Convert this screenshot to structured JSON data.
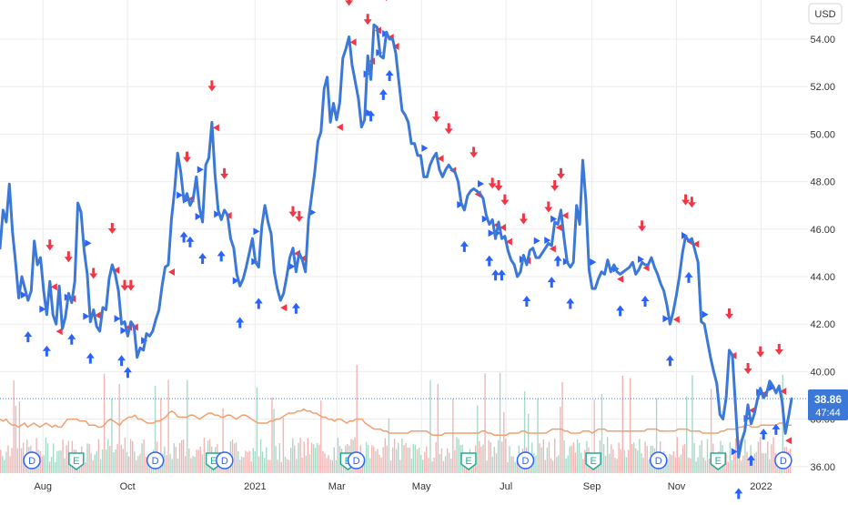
{
  "chart_data": {
    "type": "line",
    "currency": "USD",
    "ylim": [
      36,
      55
    ],
    "y_ticks": [
      "36.00",
      "38.00",
      "40.00",
      "42.00",
      "44.00",
      "46.00",
      "48.00",
      "50.00",
      "52.00",
      "54.00"
    ],
    "x_ticks": [
      {
        "label": "Aug",
        "x": "2020-08"
      },
      {
        "label": "Oct",
        "x": "2020-10"
      },
      {
        "label": "2021",
        "x": "2021-01"
      },
      {
        "label": "Mar",
        "x": "2021-03"
      },
      {
        "label": "May",
        "x": "2021-05"
      },
      {
        "label": "Jul",
        "x": "2021-07"
      },
      {
        "label": "Sep",
        "x": "2021-09"
      },
      {
        "label": "Nov",
        "x": "2021-11"
      },
      {
        "label": "2022",
        "x": "2022-01"
      }
    ],
    "grid": true,
    "last_price": "38.86",
    "countdown": "47:44",
    "series": [
      {
        "values": [
          45.2,
          46.8,
          46.3,
          47.9,
          45.9,
          44.6,
          43.1,
          44.0,
          43.5,
          43.0,
          43.4,
          45.5,
          44.5,
          44.8,
          43.4,
          42.4,
          43.8,
          42.4,
          42.0,
          43.6,
          41.8,
          42.3,
          43.3,
          42.9,
          43.8,
          47.1,
          46.7,
          45.1,
          44.1,
          42.1,
          42.6,
          41.9,
          41.7,
          42.7,
          42.6,
          43.9,
          44.5,
          44.1,
          43.4,
          42.0,
          42.1,
          41.5,
          42.1,
          41.9,
          40.6,
          41.0,
          40.9,
          41.6,
          41.5,
          41.7,
          42.2,
          42.6,
          43.6,
          44.4,
          44.5,
          46.4,
          47.6,
          49.2,
          48.4,
          47.2,
          47.5,
          47.0,
          47.3,
          48.2,
          46.9,
          46.3,
          48.7,
          49.0,
          50.5,
          48.3,
          46.8,
          46.4,
          46.8,
          46.6,
          45.6,
          45.2,
          44.1,
          43.6,
          43.9,
          44.4,
          45.0,
          45.6,
          44.6,
          44.4,
          46.1,
          47.0,
          46.3,
          45.8,
          44.2,
          43.5,
          43.0,
          43.3,
          44.0,
          44.8,
          45.2,
          44.2,
          45.0,
          44.7,
          44.2,
          46.4,
          47.4,
          48.4,
          49.7,
          50.1,
          51.9,
          52.4,
          50.5,
          51.3,
          50.6,
          51.3,
          53.2,
          53.6,
          54.1,
          52.9,
          52.2,
          51.5,
          50.3,
          50.6,
          53.3,
          52.3,
          54.6,
          54.5,
          53.3,
          53.2,
          54.3,
          54.0,
          54.0,
          53.4,
          52.2,
          51.0,
          50.8,
          50.5,
          49.6,
          49.6,
          49.1,
          49.1,
          48.2,
          48.2,
          48.7,
          49.0,
          49.2,
          48.5,
          48.2,
          48.5,
          48.7,
          48.5,
          48.4,
          48.0,
          47.1,
          46.8,
          47.4,
          47.6,
          47.7,
          47.6,
          47.5,
          47.3,
          46.6,
          46.2,
          46.4,
          45.6,
          46.3,
          45.6,
          45.7,
          45.1,
          44.7,
          44.5,
          44.0,
          44.2,
          44.9,
          44.5,
          45.1,
          45.2,
          44.8,
          44.8,
          45.0,
          45.2,
          45.4,
          45.3,
          46.3,
          46.2,
          46.8,
          45.6,
          44.6,
          44.4,
          44.6,
          47.0,
          46.2,
          48.9,
          47.2,
          44.3,
          43.5,
          43.5,
          43.9,
          44.2,
          44.1,
          44.7,
          44.2,
          44.5,
          44.2,
          44.1,
          44.2,
          44.3,
          44.4,
          44.6,
          44.1,
          44.3,
          44.6,
          44.5,
          44.5,
          44.8,
          44.4,
          44.1,
          43.7,
          43.4,
          42.8,
          42.0,
          42.5,
          43.2,
          44.0,
          45.0,
          45.7,
          45.5,
          45.6,
          45.1,
          44.6,
          42.1,
          42.0,
          41.3,
          40.6,
          40.0,
          39.5,
          38.2,
          38.0,
          38.9,
          40.9,
          40.7,
          38.6,
          36.4,
          37.1,
          37.5,
          38.6,
          37.8,
          38.2,
          38.8,
          39.3,
          38.9,
          39.1,
          39.6,
          39.4,
          39.1,
          39.4,
          38.7,
          37.4,
          38.1,
          38.86
        ]
      },
      {
        "name": "volume-average",
        "values": [
          27,
          26,
          27,
          25,
          24,
          24,
          23,
          24,
          25,
          23,
          24,
          25,
          24,
          23,
          24,
          25,
          24,
          23,
          24,
          23,
          23,
          25,
          27,
          27,
          27,
          27,
          26,
          26,
          26,
          24,
          24,
          24,
          23,
          23,
          24,
          26,
          27,
          26,
          25,
          24,
          26,
          27,
          28,
          28,
          29,
          27,
          27,
          26,
          25,
          25,
          25,
          26,
          26,
          27,
          28,
          30,
          31,
          30,
          28,
          28,
          28,
          28,
          29,
          29,
          28,
          27,
          28,
          29,
          30,
          30,
          29,
          29,
          28,
          28,
          29,
          29,
          28,
          27,
          28,
          29,
          29,
          28,
          27,
          26,
          25,
          25,
          25,
          25,
          26,
          26,
          27,
          27,
          28,
          29,
          30,
          30,
          30,
          31,
          31,
          32,
          31,
          31,
          30,
          30,
          29,
          28,
          28,
          27,
          27,
          26,
          27,
          27,
          26,
          25,
          26,
          26,
          27,
          27,
          27,
          25,
          24,
          23,
          22,
          22,
          22,
          21,
          21,
          20,
          20,
          20,
          20,
          20,
          20,
          20,
          21,
          21,
          21,
          21,
          21,
          21,
          20,
          19,
          19,
          19,
          19,
          20,
          20,
          20,
          20,
          20,
          20,
          20,
          20,
          20,
          20,
          20,
          20,
          21,
          21,
          20,
          20,
          19,
          19,
          19,
          19,
          19,
          20,
          20,
          20,
          20,
          21,
          21,
          20,
          20,
          20,
          20,
          20,
          20,
          20,
          21,
          22,
          22,
          22,
          22,
          21,
          21,
          20,
          20,
          20,
          20,
          21,
          21,
          21,
          20,
          21,
          22,
          22,
          22,
          21,
          21,
          21,
          21,
          21,
          21,
          21,
          21,
          21,
          21,
          21,
          21,
          21,
          22,
          22,
          22,
          22,
          21,
          21,
          21,
          21,
          21,
          21,
          22,
          22,
          22,
          22,
          21,
          21,
          21,
          21,
          20,
          20,
          20,
          20,
          20,
          20,
          21,
          21,
          22,
          22,
          22,
          22,
          23,
          23,
          24,
          24,
          23,
          23,
          23,
          24,
          24,
          24,
          24,
          24,
          24,
          25,
          25,
          24,
          24,
          24
        ]
      }
    ],
    "event_markers": [
      {
        "label": "D",
        "x": "2020-07-24"
      },
      {
        "label": "E",
        "x": "2020-08-25"
      },
      {
        "label": "D",
        "x": "2020-10-21"
      },
      {
        "label": "E",
        "x": "2020-12-02"
      },
      {
        "label": "D",
        "x": "2020-12-10"
      },
      {
        "label": "E",
        "x": "2021-03-09"
      },
      {
        "label": "D",
        "x": "2021-03-15"
      },
      {
        "label": "E",
        "x": "2021-06-04"
      },
      {
        "label": "D",
        "x": "2021-07-15"
      },
      {
        "label": "E",
        "x": "2021-09-02"
      },
      {
        "label": "D",
        "x": "2021-10-19"
      },
      {
        "label": "E",
        "x": "2021-12-01"
      },
      {
        "label": "D",
        "x": "2022-01-17"
      }
    ],
    "colors": {
      "price_line": "#3c78d8",
      "volume_avg": "#f0a070",
      "volume_up": "#a8d8c8",
      "volume_down": "#f5b4b4",
      "sell_marker": "#f23645",
      "buy_marker": "#2962ff",
      "event_circle": "#2962ff",
      "event_earnings": "#22ab94",
      "grid": "#ececec",
      "axis_text": "#333333"
    }
  }
}
